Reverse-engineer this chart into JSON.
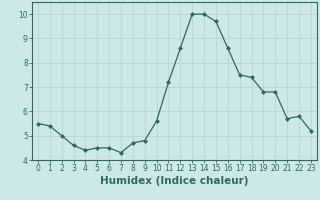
{
  "x": [
    0,
    1,
    2,
    3,
    4,
    5,
    6,
    7,
    8,
    9,
    10,
    11,
    12,
    13,
    14,
    15,
    16,
    17,
    18,
    19,
    20,
    21,
    22,
    23
  ],
  "y": [
    5.5,
    5.4,
    5.0,
    4.6,
    4.4,
    4.5,
    4.5,
    4.3,
    4.7,
    4.8,
    5.6,
    7.2,
    8.6,
    10.0,
    10.0,
    9.7,
    8.6,
    7.5,
    7.4,
    6.8,
    6.8,
    5.7,
    5.8,
    5.2
  ],
  "line_color": "#2e6b5e",
  "marker": "D",
  "marker_size": 2.0,
  "bg_color": "#cce8e8",
  "grid_color": "#b8d4d4",
  "xlabel": "Humidex (Indice chaleur)",
  "ylim": [
    4,
    10.5
  ],
  "xlim": [
    -0.5,
    23.5
  ],
  "yticks": [
    4,
    5,
    6,
    7,
    8,
    9,
    10
  ],
  "xticks": [
    0,
    1,
    2,
    3,
    4,
    5,
    6,
    7,
    8,
    9,
    10,
    11,
    12,
    13,
    14,
    15,
    16,
    17,
    18,
    19,
    20,
    21,
    22,
    23
  ],
  "tick_label_fontsize": 5.5,
  "xlabel_fontsize": 7.5,
  "spine_color": "#2e6b5e"
}
